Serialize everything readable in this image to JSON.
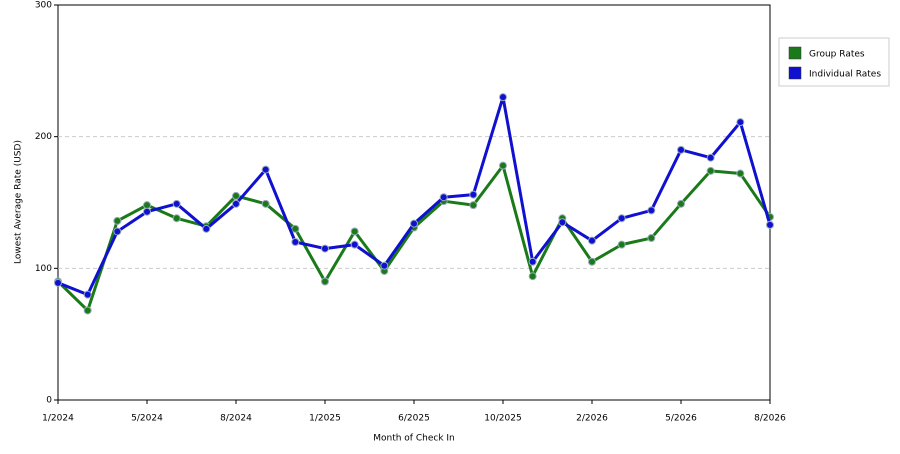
{
  "chart_data": {
    "type": "line",
    "x_label": "Month of Check In",
    "y_label": "Lowest Average Rate (USD)",
    "categories": [
      "1/2024",
      null,
      null,
      "5/2024",
      null,
      null,
      "8/2024",
      null,
      null,
      "1/2025",
      null,
      null,
      "6/2025",
      null,
      null,
      "10/2025",
      null,
      null,
      "2/2026",
      null,
      null,
      "5/2026",
      null,
      null,
      "8/2026"
    ],
    "series": [
      {
        "name": "Group Rates",
        "color": "#1a7a1a",
        "values": [
          90,
          68,
          136,
          148,
          138,
          132,
          155,
          149,
          130,
          90,
          128,
          98,
          131,
          151,
          148,
          178,
          94,
          138,
          105,
          118,
          123,
          149,
          174,
          172,
          139
        ]
      },
      {
        "name": "Individual Rates",
        "color": "#1010d0",
        "values": [
          89,
          80,
          128,
          143,
          149,
          130,
          149,
          175,
          120,
          115,
          118,
          102,
          134,
          154,
          156,
          230,
          105,
          135,
          121,
          138,
          144,
          190,
          184,
          211,
          133
        ]
      }
    ],
    "ylim": [
      0,
      300
    ],
    "yticks": [
      0,
      100,
      200,
      300
    ],
    "grid": true,
    "legend": "right"
  }
}
